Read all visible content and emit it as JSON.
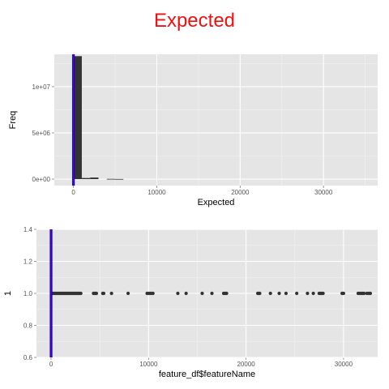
{
  "page_title": "Expected",
  "colors": {
    "title": "#ee1111",
    "panel_bg": "#e5e5e5",
    "grid": "#ffffff",
    "bars": "#333333",
    "points": "#333333",
    "vline_outer": "#0000ff",
    "vline_inner": "#990066"
  },
  "chart_data": [
    {
      "type": "bar",
      "subtype": "histogram",
      "xlabel": "Expected",
      "ylabel": "Freq",
      "xlim": [
        -2300,
        36500
      ],
      "ylim": [
        -700000,
        13500000
      ],
      "x_ticks": [
        0,
        10000,
        20000,
        30000
      ],
      "x_tick_labels": [
        "0",
        "10000",
        "20000",
        "30000"
      ],
      "y_ticks": [
        0,
        5000000,
        10000000
      ],
      "y_tick_labels": [
        "0e+00",
        "5e+06",
        "1e+07"
      ],
      "grid": true,
      "bins": [
        {
          "x0": 0,
          "x1": 1000,
          "count": 13300000
        },
        {
          "x0": 1000,
          "x1": 2000,
          "count": 120000
        },
        {
          "x0": 2000,
          "x1": 3000,
          "count": 170000
        },
        {
          "x0": 4000,
          "x1": 5000,
          "count": 25000
        },
        {
          "x0": 5000,
          "x1": 6000,
          "count": 15000
        }
      ],
      "vline": 0
    },
    {
      "type": "scatter",
      "xlabel": "feature_df$featureName",
      "ylabel": "1",
      "xlim": [
        -1500,
        33500
      ],
      "ylim": [
        0.6,
        1.4
      ],
      "x_ticks": [
        0,
        10000,
        20000,
        30000
      ],
      "x_tick_labels": [
        "0",
        "10000",
        "20000",
        "30000"
      ],
      "y_ticks": [
        0.6,
        0.8,
        1.0,
        1.2,
        1.4
      ],
      "y_tick_labels": [
        "0.6",
        "0.8",
        "1.0",
        "1.2",
        "1.4"
      ],
      "grid": true,
      "x": [
        50,
        150,
        250,
        350,
        450,
        550,
        650,
        750,
        850,
        950,
        1050,
        1150,
        1250,
        1350,
        1450,
        1550,
        1650,
        1750,
        1850,
        1950,
        2050,
        2150,
        2250,
        2350,
        2450,
        2550,
        2650,
        2750,
        2850,
        2950,
        3050,
        4350,
        4450,
        4550,
        4650,
        5300,
        5400,
        6200,
        7900,
        9850,
        10050,
        10250,
        10450,
        13000,
        13850,
        15500,
        16500,
        17700,
        17850,
        18000,
        21200,
        21300,
        21400,
        22500,
        23400,
        24100,
        25200,
        26300,
        26900,
        27500,
        27600,
        27750,
        27900,
        29850,
        30000,
        31500,
        31650,
        31800,
        31950,
        32100,
        32400,
        32600,
        32750
      ],
      "y": [
        1.0,
        1.0,
        1.0,
        1.0,
        1.0,
        1.0,
        1.0,
        1.0,
        1.0,
        1.0,
        1.0,
        1.0,
        1.0,
        1.0,
        1.0,
        1.0,
        1.0,
        1.0,
        1.0,
        1.0,
        1.0,
        1.0,
        1.0,
        1.0,
        1.0,
        1.0,
        1.0,
        1.0,
        1.0,
        1.0,
        1.0,
        1.0,
        1.0,
        1.0,
        1.0,
        1.0,
        1.0,
        1.0,
        1.0,
        1.0,
        1.0,
        1.0,
        1.0,
        1.0,
        1.0,
        1.0,
        1.0,
        1.0,
        1.0,
        1.0,
        1.0,
        1.0,
        1.0,
        1.0,
        1.0,
        1.0,
        1.0,
        1.0,
        1.0,
        1.0,
        1.0,
        1.0,
        1.0,
        1.0,
        1.0,
        1.0,
        1.0,
        1.0,
        1.0,
        1.0,
        1.0,
        1.0,
        1.0
      ],
      "vline": 0
    }
  ]
}
